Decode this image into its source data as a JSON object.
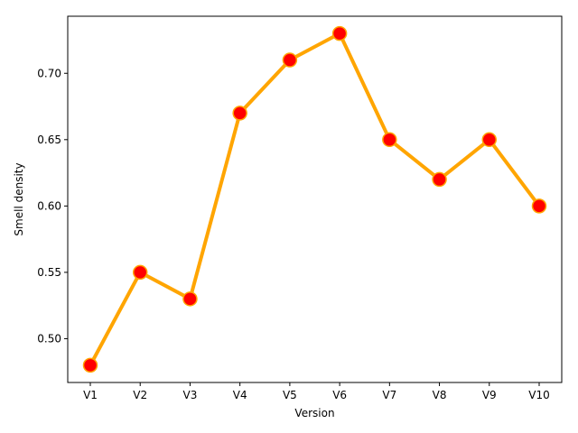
{
  "chart_data": {
    "type": "line",
    "title": "",
    "xlabel": "Version",
    "ylabel": "Smell density",
    "categories": [
      "V1",
      "V2",
      "V3",
      "V4",
      "V5",
      "V6",
      "V7",
      "V8",
      "V9",
      "V10"
    ],
    "series": [
      {
        "values": [
          0.48,
          0.55,
          0.53,
          0.67,
          0.71,
          0.73,
          0.65,
          0.62,
          0.65,
          0.6
        ],
        "line_color": "#FFA500",
        "marker_color": "#FF0000",
        "marker_edge_color": "#FFA500"
      }
    ],
    "ylim": [
      0.467,
      0.743
    ],
    "yticks": [
      0.5,
      0.55,
      0.6,
      0.65,
      0.7
    ],
    "ytick_labels": [
      "0.50",
      "0.55",
      "0.60",
      "0.65",
      "0.70"
    ],
    "grid": false,
    "legend": false
  }
}
